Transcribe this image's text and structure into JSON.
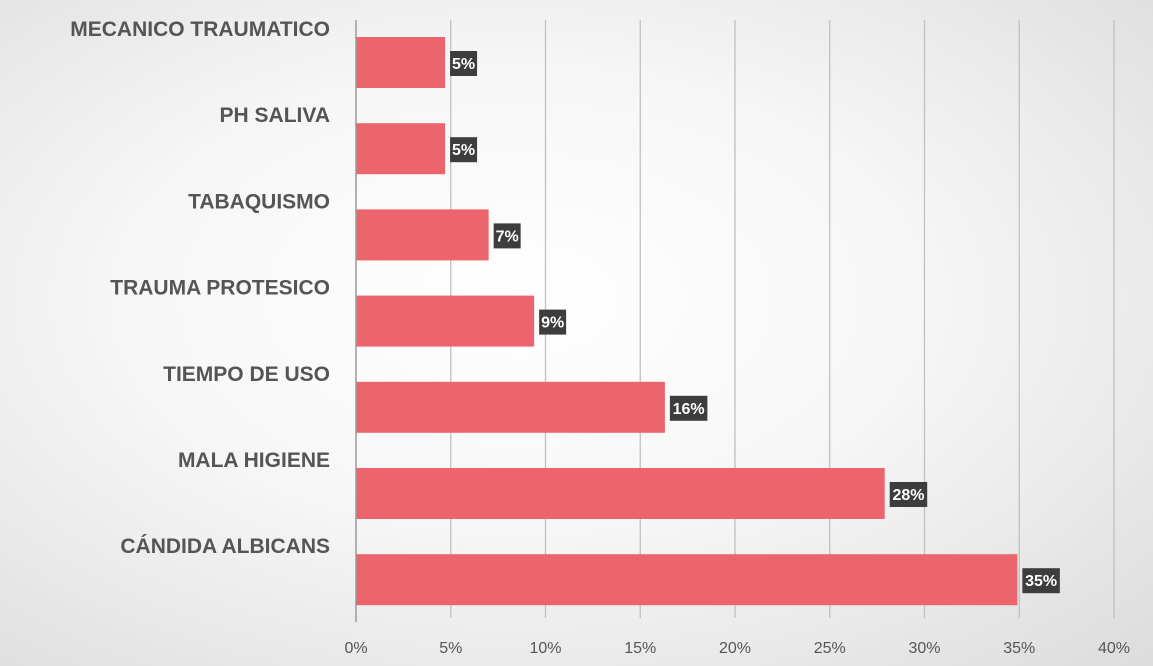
{
  "chart_data": {
    "type": "bar",
    "orientation": "horizontal",
    "categories": [
      "MECANICO TRAUMATICO",
      "PH SALIVA",
      "TABAQUISMO",
      "TRAUMA PROTESICO",
      "TIEMPO DE USO",
      "MALA HIGIENE",
      "CÁNDIDA ALBICANS"
    ],
    "values": [
      4.7,
      4.7,
      7.0,
      9.4,
      16.3,
      27.9,
      34.9
    ],
    "data_labels": [
      "5%",
      "5%",
      "7%",
      "9%",
      "16%",
      "28%",
      "35%"
    ],
    "xlim": [
      0,
      40
    ],
    "x_ticks": [
      0,
      5,
      10,
      15,
      20,
      25,
      30,
      35,
      40
    ],
    "x_tick_labels": [
      "0%",
      "5%",
      "10%",
      "15%",
      "20%",
      "25%",
      "30%",
      "35%",
      "40%"
    ],
    "title": "",
    "xlabel": "",
    "ylabel": "",
    "grid": "vertical",
    "legend": "none",
    "colors": {
      "bar": "#ec646c",
      "grid": "#c0c0c0",
      "label_box": "#3d3d3d",
      "text": "#555555"
    }
  }
}
